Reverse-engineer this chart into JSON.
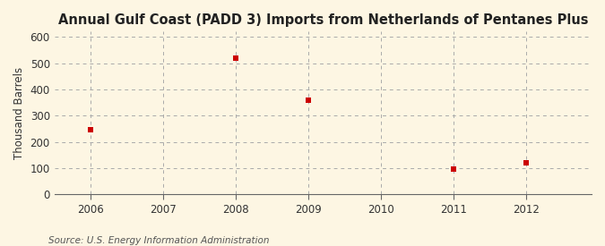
{
  "title": "Annual Gulf Coast (PADD 3) Imports from Netherlands of Pentanes Plus",
  "ylabel": "Thousand Barrels",
  "source": "Source: U.S. Energy Information Administration",
  "background_color": "#fdf6e3",
  "plot_bg_color": "#fdf6e3",
  "x_values": [
    2006,
    2008,
    2009,
    2011,
    2012
  ],
  "y_values": [
    248,
    519,
    360,
    97,
    120
  ],
  "marker_color": "#cc0000",
  "marker_size": 25,
  "xlim": [
    2005.5,
    2012.9
  ],
  "ylim": [
    0,
    620
  ],
  "yticks": [
    0,
    100,
    200,
    300,
    400,
    500,
    600
  ],
  "xticks": [
    2006,
    2007,
    2008,
    2009,
    2010,
    2011,
    2012
  ],
  "grid_color": "#aaaaaa",
  "title_fontsize": 10.5,
  "label_fontsize": 8.5,
  "tick_fontsize": 8.5,
  "source_fontsize": 7.5
}
